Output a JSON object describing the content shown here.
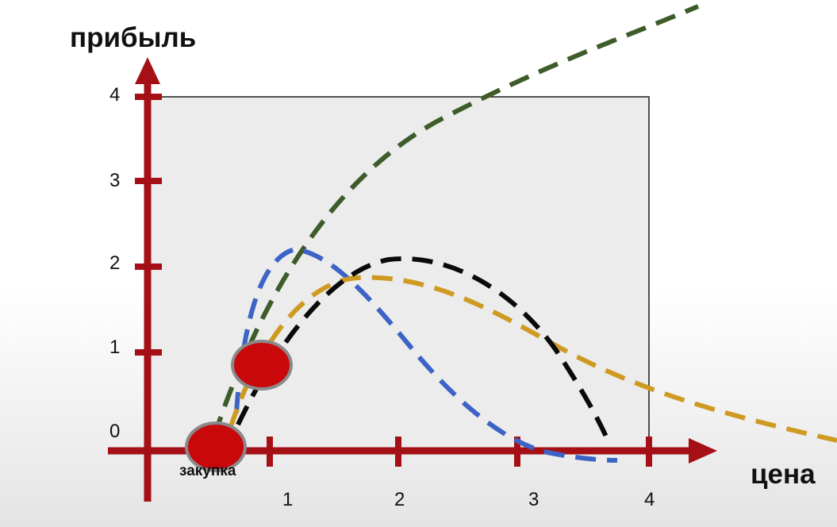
{
  "diagram": {
    "y_axis_label": "прибыль",
    "x_axis_label": "цена",
    "y_ticks": [
      "0",
      "1",
      "2",
      "3",
      "4"
    ],
    "x_ticks": [
      "1",
      "2",
      "3",
      "4"
    ],
    "point_label": "закупка",
    "colors": {
      "axis": "#a41016",
      "marker_fill": "#c9080c",
      "marker_ring": "#8a8a8a",
      "curve_green": "#3e5c2a",
      "curve_blue": "#3c63c6",
      "curve_black": "#0a0a0a",
      "curve_gold": "#cf9a22",
      "box_fill": "#ececec"
    }
  }
}
